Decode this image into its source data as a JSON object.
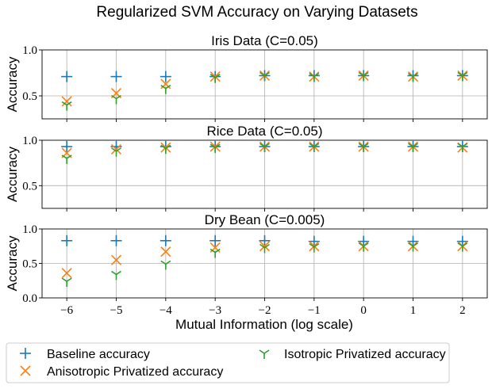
{
  "figure_title": "Regularized SVM Accuracy on Varying Datasets",
  "xlabel": "Mutual Information (log scale)",
  "x_ticks": [
    "−6",
    "−5",
    "−4",
    "−3",
    "−2",
    "−1",
    "0",
    "1",
    "2"
  ],
  "legend": {
    "placement": "bottom",
    "entries": [
      {
        "label": "Baseline accuracy",
        "marker": "plus",
        "color": "#1f77b4"
      },
      {
        "label": "Anisotropic Privatized accuracy",
        "marker": "x",
        "color": "#ff7f0e"
      },
      {
        "label": "Isotropic Privatized accuracy",
        "marker": "tri_down",
        "color": "#2ca02c"
      }
    ]
  },
  "chart_data": [
    {
      "type": "scatter",
      "title": "Iris Data (C=0.05)",
      "xlabel": "",
      "ylabel": "Accuracy",
      "xlim": [
        -6.5,
        2.5
      ],
      "ylim": [
        0.25,
        1.0
      ],
      "yticks": [
        "0.5",
        "1.0"
      ],
      "grid": true,
      "x": [
        -6,
        -5,
        -4,
        -3,
        -2,
        -1,
        0,
        1,
        2
      ],
      "series": [
        {
          "name": "Baseline accuracy",
          "values": [
            0.71,
            0.71,
            0.71,
            0.71,
            0.72,
            0.72,
            0.72,
            0.72,
            0.72
          ]
        },
        {
          "name": "Anisotropic Privatized accuracy",
          "values": [
            0.44,
            0.53,
            0.63,
            0.71,
            0.72,
            0.71,
            0.72,
            0.71,
            0.72
          ]
        },
        {
          "name": "Isotropic Privatized accuracy",
          "values": [
            0.4,
            0.47,
            0.58,
            0.7,
            0.72,
            0.71,
            0.72,
            0.71,
            0.72
          ]
        }
      ]
    },
    {
      "type": "scatter",
      "title": "Rice Data (C=0.05)",
      "xlabel": "",
      "ylabel": "Accuracy",
      "xlim": [
        -6.5,
        2.5
      ],
      "ylim": [
        0.25,
        1.0
      ],
      "yticks": [
        "0.5",
        "1.0"
      ],
      "grid": true,
      "x": [
        -6,
        -5,
        -4,
        -3,
        -2,
        -1,
        0,
        1,
        2
      ],
      "series": [
        {
          "name": "Baseline accuracy",
          "values": [
            0.93,
            0.93,
            0.93,
            0.93,
            0.93,
            0.93,
            0.93,
            0.93,
            0.93
          ]
        },
        {
          "name": "Anisotropic Privatized accuracy",
          "values": [
            0.86,
            0.9,
            0.92,
            0.93,
            0.93,
            0.93,
            0.93,
            0.93,
            0.92
          ]
        },
        {
          "name": "Isotropic Privatized accuracy",
          "values": [
            0.8,
            0.88,
            0.91,
            0.92,
            0.93,
            0.93,
            0.93,
            0.93,
            0.93
          ]
        }
      ]
    },
    {
      "type": "scatter",
      "title": "Dry Bean (C=0.005)",
      "xlabel": "Mutual Information (log scale)",
      "ylabel": "Accuracy",
      "xlim": [
        -6.5,
        2.5
      ],
      "ylim": [
        0.0,
        1.0
      ],
      "yticks": [
        "0.0",
        "0.5",
        "1.0"
      ],
      "grid": true,
      "x": [
        -6,
        -5,
        -4,
        -3,
        -2,
        -1,
        0,
        1,
        2
      ],
      "series": [
        {
          "name": "Baseline accuracy",
          "values": [
            0.83,
            0.83,
            0.83,
            0.83,
            0.83,
            0.82,
            0.82,
            0.82,
            0.82
          ]
        },
        {
          "name": "Anisotropic Privatized accuracy",
          "values": [
            0.36,
            0.55,
            0.67,
            0.73,
            0.75,
            0.75,
            0.75,
            0.75,
            0.75
          ]
        },
        {
          "name": "Isotropic Privatized accuracy",
          "values": [
            0.24,
            0.34,
            0.49,
            0.66,
            0.73,
            0.74,
            0.75,
            0.75,
            0.75
          ]
        }
      ]
    }
  ]
}
